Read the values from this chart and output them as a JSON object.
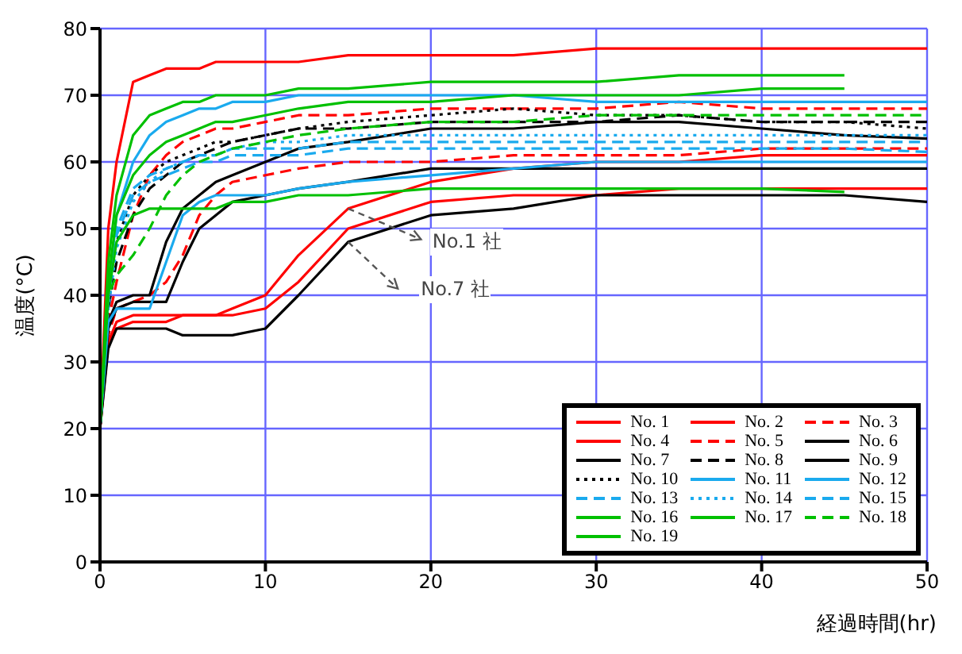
{
  "chart_data": {
    "type": "line",
    "xlabel": "経過時間(hr)",
    "ylabel": "温度(°C)",
    "x": [
      0,
      0.5,
      1,
      2,
      3,
      4,
      5,
      6,
      7,
      8,
      10,
      12,
      15,
      20,
      25,
      30,
      35,
      40,
      45,
      50
    ],
    "xlim": [
      0,
      50
    ],
    "xticks": [
      0,
      10,
      20,
      30,
      40,
      50
    ],
    "ylim": [
      0,
      80
    ],
    "yticks": [
      0,
      10,
      20,
      30,
      40,
      50,
      60,
      70,
      80
    ],
    "grid": true,
    "legend": "bottom right",
    "marker": "none",
    "annotations": [
      {
        "text": "No.1 社",
        "x": 15,
        "y": 53
      },
      {
        "text": "No.7 社",
        "x": 15,
        "y": 48
      }
    ],
    "series": [
      {
        "name": "No. 1",
        "color": "#ff0000",
        "line_style": "solid",
        "values": [
          20,
          33,
          36,
          37,
          37,
          37,
          37,
          37,
          37,
          38,
          40,
          46,
          53,
          57,
          59,
          60,
          60,
          61,
          61,
          61
        ]
      },
      {
        "name": "No. 2",
        "color": "#ff0000",
        "line_style": "solid",
        "values": [
          20,
          33,
          35,
          36,
          36,
          36,
          37,
          37,
          37,
          37,
          38,
          42,
          50,
          54,
          55,
          55,
          56,
          56,
          56,
          56
        ]
      },
      {
        "name": "No. 3",
        "color": "#ff0000",
        "line_style": "dashed",
        "values": [
          20,
          34,
          38,
          39,
          40,
          42,
          46,
          52,
          55,
          57,
          58,
          59,
          60,
          60,
          61,
          61,
          61,
          62,
          62,
          62
        ]
      },
      {
        "name": "No. 4",
        "color": "#ff0000",
        "line_style": "solid",
        "values": [
          20,
          50,
          60,
          72,
          73,
          74,
          74,
          74,
          75,
          75,
          75,
          75,
          76,
          76,
          76,
          77,
          77,
          77,
          77,
          77
        ]
      },
      {
        "name": "No. 5",
        "color": "#ff0000",
        "line_style": "dashed",
        "values": [
          20,
          36,
          42,
          52,
          58,
          61,
          63,
          64,
          65,
          65,
          66,
          67,
          67,
          68,
          68,
          68,
          69,
          68,
          68,
          68
        ]
      },
      {
        "name": "No. 6",
        "color": "#000000",
        "line_style": "solid",
        "values": [
          20,
          35,
          38,
          39,
          39,
          39,
          45,
          50,
          52,
          54,
          55,
          56,
          57,
          59,
          59,
          59,
          59,
          59,
          59,
          59
        ]
      },
      {
        "name": "No. 7",
        "color": "#000000",
        "line_style": "solid",
        "values": [
          20,
          32,
          35,
          35,
          35,
          35,
          34,
          34,
          34,
          34,
          35,
          40,
          48,
          52,
          53,
          55,
          55,
          55,
          55,
          54
        ]
      },
      {
        "name": "No. 8",
        "color": "#000000",
        "line_style": "dashed",
        "values": [
          20,
          38,
          45,
          52,
          56,
          58,
          60,
          61,
          62,
          63,
          64,
          65,
          65,
          66,
          66,
          66,
          67,
          66,
          66,
          66
        ]
      },
      {
        "name": "No. 9",
        "color": "#000000",
        "line_style": "solid",
        "values": [
          20,
          36,
          39,
          40,
          40,
          48,
          53,
          55,
          57,
          58,
          60,
          62,
          63,
          65,
          65,
          66,
          66,
          65,
          64,
          63.5
        ]
      },
      {
        "name": "No. 10",
        "color": "#000000",
        "line_style": "dotted",
        "values": [
          20,
          38,
          48,
          55,
          58,
          60,
          61,
          62,
          63,
          63,
          64,
          65,
          66,
          67,
          68,
          67,
          67,
          66,
          66,
          65
        ]
      },
      {
        "name": "No. 11",
        "color": "#1aaaee",
        "line_style": "solid",
        "values": [
          20,
          40,
          52,
          60,
          64,
          66,
          67,
          68,
          68,
          69,
          69,
          70,
          70,
          70,
          70,
          69,
          69,
          69,
          69,
          69
        ]
      },
      {
        "name": "No. 12",
        "color": "#1aaaee",
        "line_style": "solid",
        "values": [
          20,
          36,
          38,
          38,
          38,
          45,
          52,
          54,
          55,
          55,
          55,
          56,
          57,
          58,
          59,
          60,
          60,
          60,
          60,
          60
        ]
      },
      {
        "name": "No. 13",
        "color": "#1aaaee",
        "line_style": "dashed",
        "values": [
          20,
          40,
          50,
          56,
          58,
          59,
          60,
          61,
          61,
          62,
          62,
          62,
          63,
          63,
          63,
          63,
          63,
          63,
          63,
          63
        ]
      },
      {
        "name": "No. 14",
        "color": "#1aaaee",
        "line_style": "dotted",
        "values": [
          20,
          38,
          47,
          54,
          57,
          59,
          60,
          61,
          61,
          62,
          63,
          63,
          64,
          64,
          64,
          64,
          64,
          64,
          64,
          64
        ]
      },
      {
        "name": "No. 15",
        "color": "#1aaaee",
        "line_style": "dashed",
        "values": [
          20,
          39,
          49,
          55,
          57,
          58,
          59,
          60,
          60,
          61,
          61,
          61,
          62,
          62,
          62,
          62,
          62,
          62,
          62,
          61.5
        ]
      },
      {
        "name": "No. 16",
        "color": "#00c000",
        "line_style": "solid",
        "values": [
          20,
          45,
          55,
          64,
          67,
          68,
          69,
          69,
          70,
          70,
          70,
          71,
          71,
          72,
          72,
          72,
          73,
          73,
          73,
          null
        ]
      },
      {
        "name": "No. 17",
        "color": "#00c000",
        "line_style": "solid",
        "values": [
          20,
          42,
          52,
          58,
          61,
          63,
          64,
          65,
          66,
          66,
          67,
          68,
          69,
          69,
          70,
          70,
          70,
          71,
          71,
          null
        ]
      },
      {
        "name": "No. 18",
        "color": "#00c000",
        "line_style": "dashed",
        "values": [
          20,
          40,
          43,
          46,
          50,
          55,
          58,
          60,
          61,
          62,
          63,
          64,
          65,
          66,
          66,
          67,
          67,
          67,
          67,
          67
        ]
      },
      {
        "name": "No. 19",
        "color": "#00c000",
        "line_style": "solid",
        "values": [
          20,
          40,
          48,
          52,
          53,
          53,
          53,
          53,
          53,
          54,
          54,
          55,
          55,
          56,
          56,
          56,
          56,
          56,
          55.5,
          null
        ]
      }
    ]
  }
}
